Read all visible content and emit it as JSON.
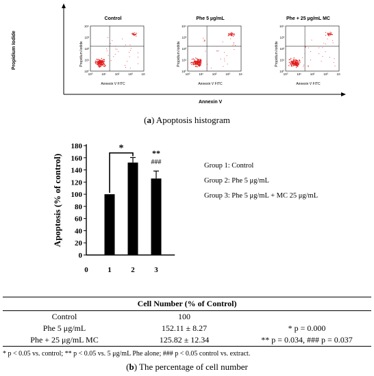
{
  "panel_a": {
    "y_axis_label": "Propidium Iodide",
    "x_axis_label": "Annexin V",
    "caption_letter": "a",
    "caption_text": " Apoptosis histogram",
    "plots": [
      {
        "title": "Control",
        "x_label": "Annexin V FITC",
        "y_label": "Propidium Iodide"
      },
      {
        "title": "Phe 5 µg/mL",
        "x_label": "Annexin V FITC",
        "y_label": "Propidium Iodide"
      },
      {
        "title": "Phe + 25 µg/mL MC",
        "x_label": "Annexin V FITC",
        "y_label": "Propidium Iodide"
      }
    ],
    "tick_labels": [
      "10⁰",
      "10¹",
      "10²",
      "10³",
      "10⁴"
    ],
    "dot_color": "#e31b1b"
  },
  "chart_data": {
    "type": "bar",
    "categories": [
      "1",
      "2",
      "3"
    ],
    "x_ticks": [
      "0",
      "1",
      "2",
      "3"
    ],
    "values": [
      100,
      152.11,
      125.82
    ],
    "errors": [
      0,
      8.27,
      12.34
    ],
    "ylabel": "Apoptosis (% of control)",
    "ylim": [
      0,
      180
    ],
    "yticks": [
      0,
      20,
      40,
      60,
      80,
      100,
      120,
      140,
      160,
      180
    ],
    "annotations": {
      "bracket_star": "*",
      "bar3_top": "**",
      "bar3_bottom": "###"
    },
    "bar_color": "#000000"
  },
  "legend": [
    "Group 1: Control",
    "Group 2: Phe 5 μg/mL",
    "Group 3: Phe 5 μg/mL + MC 25 μg/mL"
  ],
  "table": {
    "header": "Cell Number (% of Control)",
    "rows": [
      {
        "label": "Control",
        "value": "100",
        "p": ""
      },
      {
        "label": "Phe 5 μg/mL",
        "value": "152.11 ± 8.27",
        "p": "* p = 0.000"
      },
      {
        "label": "Phe + 25 μg/mL MC",
        "value": "125.82 ± 12.34",
        "p": "** p = 0.034, ### p = 0.037"
      }
    ]
  },
  "footnote": "* p < 0.05 vs. control; ** p < 0.05 vs. 5 μg/mL Phe alone; ### p < 0.05 control vs. extract.",
  "caption_b_letter": "b",
  "caption_b_text": " The percentage of cell number"
}
